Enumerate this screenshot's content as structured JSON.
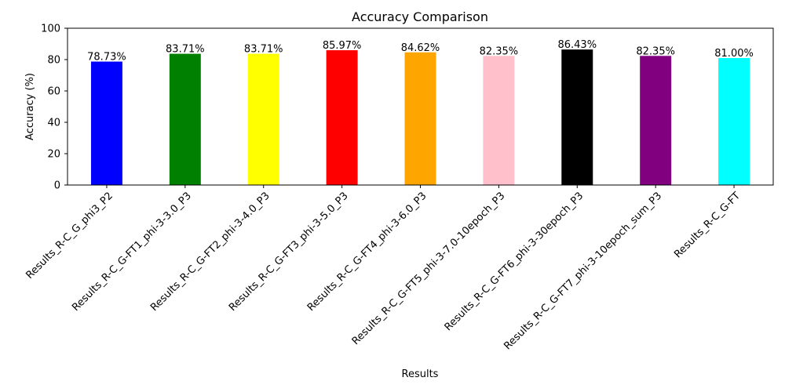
{
  "chart_data": {
    "type": "bar",
    "title": "Accuracy Comparison",
    "xlabel": "Results",
    "ylabel": "Accuracy (%)",
    "ylim": [
      0,
      100
    ],
    "yticks": [
      0,
      20,
      40,
      60,
      80,
      100
    ],
    "grid": false,
    "legend": "none",
    "categories": [
      "Results_R-C_G_phi3_P2",
      "Results_R-C_G-FT1_phi-3-3.0_P3",
      "Results_R-C_G-FT2_phi-3-4.0_P3",
      "Results_R-C_G-FT3_phi-3-5.0_P3",
      "Results_R-C_G-FT4_phi-3-6.0_P3",
      "Results_R-C_G-FT5_phi-3-7.0-10epoch_P3",
      "Results_R-C_G-FT6_phi-3-30epoch_P3",
      "Results_R-C_G-FT7_phi-3-10epoch_sum_P3",
      "Results_R-C_G-FT"
    ],
    "values": [
      78.73,
      83.71,
      83.71,
      85.97,
      84.62,
      82.35,
      86.43,
      82.35,
      81.0
    ],
    "data_labels": [
      "78.73%",
      "83.71%",
      "83.71%",
      "85.97%",
      "84.62%",
      "82.35%",
      "86.43%",
      "82.35%",
      "81.00%"
    ],
    "colors": [
      "#0000ff",
      "#008000",
      "#ffff00",
      "#ff0000",
      "#ffa500",
      "#ffc0cb",
      "#000000",
      "#800080",
      "#00ffff"
    ]
  }
}
